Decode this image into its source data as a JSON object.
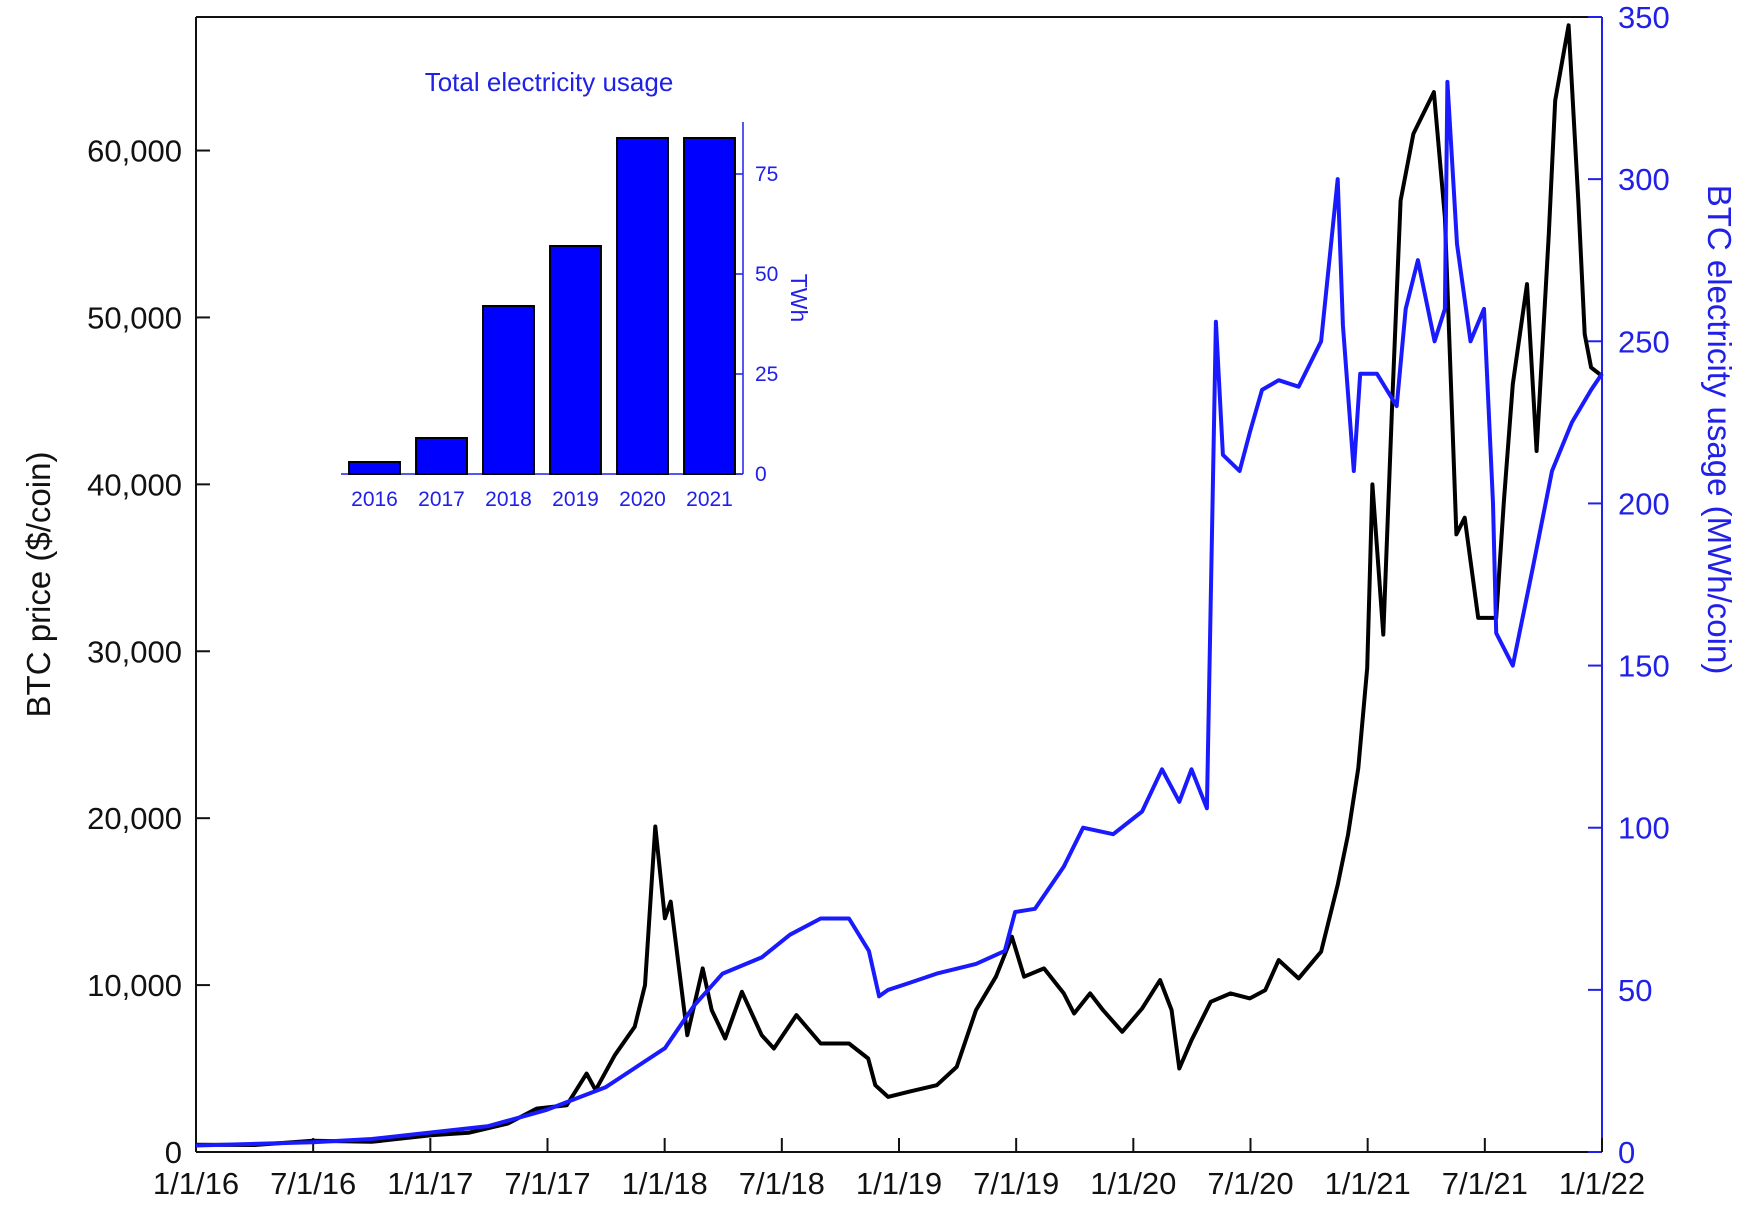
{
  "chart_data": [
    {
      "type": "line",
      "x_tick_labels": [
        "1/1/16",
        "7/1/16",
        "1/1/17",
        "7/1/17",
        "1/1/18",
        "7/1/18",
        "1/1/19",
        "7/1/19",
        "1/1/20",
        "7/1/20",
        "1/1/21",
        "7/1/21",
        "1/1/22"
      ],
      "xlim": [
        "2016-01-01",
        "2022-01-01"
      ],
      "y_left": {
        "label": "BTC price ($/coin)",
        "ylim": [
          0,
          68000
        ],
        "ticks": [
          0,
          10000,
          20000,
          30000,
          40000,
          50000,
          60000
        ],
        "tick_labels": [
          "0",
          "10,000",
          "20,000",
          "30,000",
          "40,000",
          "50,000",
          "60,000"
        ]
      },
      "y_right": {
        "label": "BTC electricity usage (MWh/coin)",
        "ylim": [
          0,
          350
        ],
        "ticks": [
          0,
          50,
          100,
          150,
          200,
          250,
          300,
          350
        ],
        "tick_labels": [
          "0",
          "50",
          "100",
          "150",
          "200",
          "250",
          "300",
          "350"
        ]
      },
      "grid": false,
      "series": [
        {
          "axis": "left",
          "color": "#000000",
          "x": [
            "2016-01-01",
            "2016-04-01",
            "2016-07-01",
            "2016-10-01",
            "2017-01-01",
            "2017-03-01",
            "2017-05-01",
            "2017-06-15",
            "2017-08-01",
            "2017-09-01",
            "2017-09-15",
            "2017-10-15",
            "2017-11-15",
            "2017-12-01",
            "2017-12-17",
            "2018-01-01",
            "2018-01-10",
            "2018-02-05",
            "2018-03-01",
            "2018-03-15",
            "2018-04-05",
            "2018-05-01",
            "2018-06-01",
            "2018-06-20",
            "2018-07-25",
            "2018-09-01",
            "2018-10-15",
            "2018-11-14",
            "2018-11-25",
            "2018-12-15",
            "2019-01-15",
            "2019-03-01",
            "2019-04-01",
            "2019-05-01",
            "2019-06-01",
            "2019-06-26",
            "2019-07-15",
            "2019-08-15",
            "2019-09-15",
            "2019-10-01",
            "2019-10-26",
            "2019-11-15",
            "2019-12-15",
            "2020-01-15",
            "2020-02-12",
            "2020-03-01",
            "2020-03-13",
            "2020-04-01",
            "2020-05-01",
            "2020-06-01",
            "2020-07-01",
            "2020-07-25",
            "2020-08-15",
            "2020-09-15",
            "2020-10-20",
            "2020-11-15",
            "2020-12-01",
            "2020-12-17",
            "2020-12-31",
            "2021-01-08",
            "2021-01-25",
            "2021-02-08",
            "2021-02-21",
            "2021-03-13",
            "2021-04-14",
            "2021-05-01",
            "2021-05-19",
            "2021-06-01",
            "2021-06-22",
            "2021-07-20",
            "2021-08-01",
            "2021-08-15",
            "2021-09-06",
            "2021-09-21",
            "2021-10-10",
            "2021-10-20",
            "2021-11-10",
            "2021-11-25",
            "2021-12-05",
            "2021-12-15",
            "2022-01-01"
          ],
          "values": [
            430,
            420,
            670,
            610,
            1000,
            1150,
            1700,
            2600,
            2800,
            4700,
            3700,
            5800,
            7500,
            10000,
            19500,
            14000,
            15000,
            7000,
            11000,
            8500,
            6800,
            9600,
            7000,
            6200,
            8200,
            6500,
            6500,
            5600,
            4000,
            3300,
            3600,
            4000,
            5100,
            8500,
            10500,
            12900,
            10500,
            11000,
            9500,
            8300,
            9500,
            8500,
            7200,
            8600,
            10300,
            8500,
            5000,
            6700,
            9000,
            9500,
            9200,
            9700,
            11500,
            10400,
            12000,
            16000,
            19000,
            23000,
            29000,
            40000,
            31000,
            45000,
            57000,
            61000,
            63500,
            56000,
            37000,
            38000,
            32000,
            32000,
            39000,
            46000,
            52000,
            42000,
            55000,
            63000,
            67500,
            57000,
            49000,
            47000,
            46500
          ]
        },
        {
          "axis": "right",
          "color": "#1a1aff",
          "x": [
            "2016-01-01",
            "2016-07-01",
            "2016-10-01",
            "2017-01-01",
            "2017-04-01",
            "2017-07-01",
            "2017-10-01",
            "2018-01-01",
            "2018-02-15",
            "2018-04-01",
            "2018-06-01",
            "2018-07-15",
            "2018-09-01",
            "2018-10-15",
            "2018-11-15",
            "2018-12-01",
            "2018-12-15",
            "2019-01-15",
            "2019-03-01",
            "2019-05-01",
            "2019-06-15",
            "2019-07-01",
            "2019-08-01",
            "2019-09-15",
            "2019-10-15",
            "2019-12-01",
            "2020-01-15",
            "2020-02-15",
            "2020-03-13",
            "2020-04-01",
            "2020-04-25",
            "2020-05-09",
            "2020-05-20",
            "2020-06-15",
            "2020-07-01",
            "2020-07-20",
            "2020-08-15",
            "2020-09-15",
            "2020-10-20",
            "2020-11-15",
            "2020-11-23",
            "2020-12-10",
            "2020-12-20",
            "2021-01-15",
            "2021-02-15",
            "2021-03-01",
            "2021-03-20",
            "2021-04-15",
            "2021-05-01",
            "2021-05-05",
            "2021-05-20",
            "2021-06-10",
            "2021-07-01",
            "2021-07-15",
            "2021-07-20",
            "2021-08-15",
            "2021-09-15",
            "2021-10-15",
            "2021-11-15",
            "2021-12-15",
            "2022-01-01"
          ],
          "values": [
            2,
            3,
            4,
            6,
            8,
            13,
            20,
            32,
            45,
            55,
            60,
            67,
            72,
            72,
            62,
            48,
            50,
            52,
            55,
            58,
            62,
            74,
            75,
            88,
            100,
            98,
            105,
            118,
            108,
            118,
            106,
            256,
            215,
            210,
            222,
            235,
            238,
            236,
            250,
            300,
            255,
            210,
            240,
            240,
            230,
            260,
            275,
            250,
            260,
            330,
            280,
            250,
            260,
            200,
            160,
            150,
            180,
            210,
            225,
            235,
            240
          ]
        }
      ]
    },
    {
      "type": "bar",
      "title": "Total electricity usage",
      "categories": [
        "2016",
        "2017",
        "2018",
        "2019",
        "2020",
        "2021"
      ],
      "values": [
        3,
        9,
        42,
        57,
        84,
        84
      ],
      "ylabel": "TWh",
      "ylim": [
        0,
        88
      ],
      "y_ticks": [
        0,
        25,
        50,
        75
      ],
      "y_tick_labels": [
        "0",
        "25",
        "50",
        "75"
      ],
      "bar_color": "#0000ff"
    }
  ]
}
